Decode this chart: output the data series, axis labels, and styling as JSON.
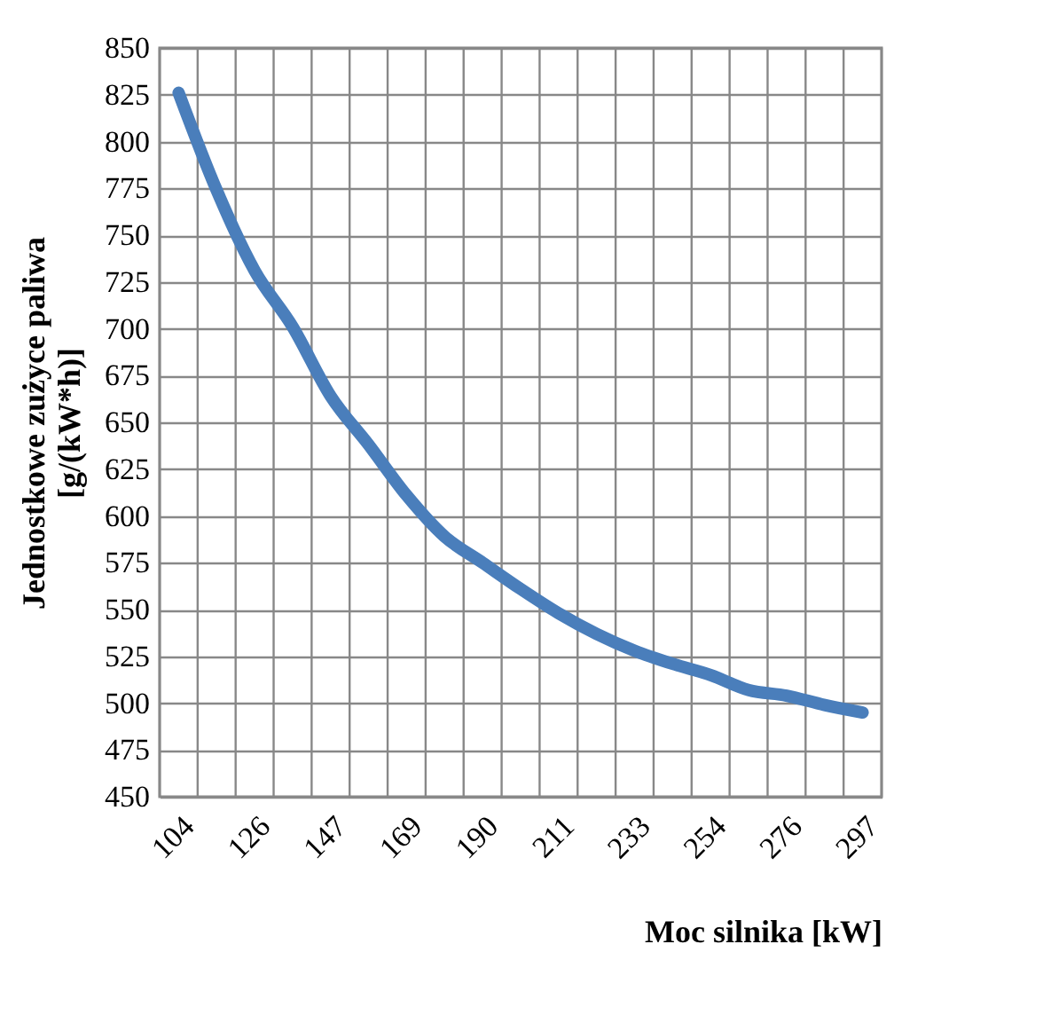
{
  "chart_data": {
    "type": "line",
    "xlabel": "Moc silnika [kW]",
    "ylabel": "Jednostkowe zużyce paliwa\n[g/(kW*h)]",
    "categories": [
      "104",
      null,
      "126",
      null,
      "147",
      null,
      "169",
      null,
      "190",
      null,
      "211",
      null,
      "233",
      null,
      "254",
      null,
      "276",
      null,
      "297"
    ],
    "series": [
      {
        "color": "#4a7ebb",
        "values": [
          826,
          774,
          731,
          701,
          664,
          638,
          611,
          589,
          575,
          561,
          548,
          537,
          528,
          521,
          515,
          507,
          504,
          499,
          495
        ]
      }
    ],
    "ylim": [
      450,
      850
    ],
    "yticks": [
      450,
      475,
      500,
      525,
      550,
      575,
      600,
      625,
      650,
      675,
      700,
      725,
      750,
      775,
      800,
      825,
      850
    ],
    "grid": true,
    "marker": "none",
    "line_style": "solid"
  }
}
